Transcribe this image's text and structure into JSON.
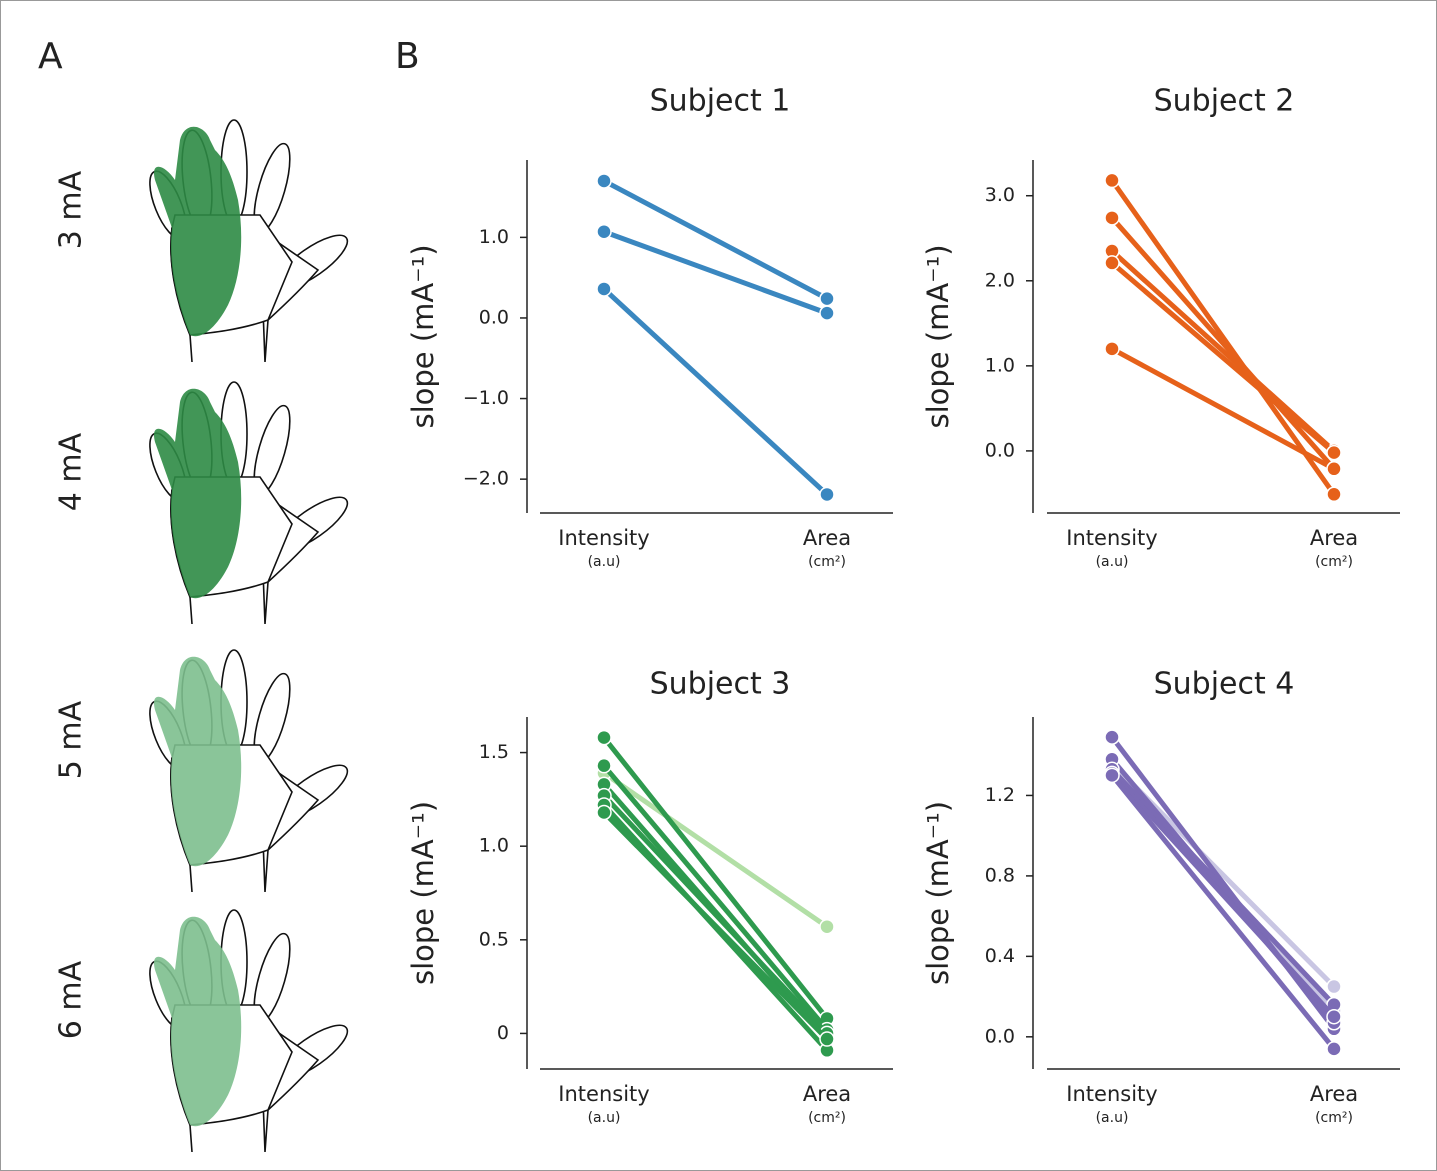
{
  "panel_a": {
    "label": "A",
    "rows": [
      "3 mA",
      "4 mA",
      "5 mA",
      "6 mA"
    ]
  },
  "panel_b": {
    "label": "B"
  },
  "chart_data": [
    {
      "type": "line",
      "title": "Subject 1",
      "y_label": "slope (mA⁻¹)",
      "categories": [
        "Intensity",
        "Area"
      ],
      "category_units": [
        "(a.u)",
        "(cm²)"
      ],
      "ylim": [
        -2.42,
        1.96
      ],
      "yticks": [
        {
          "value": 1,
          "label": "1.0"
        },
        {
          "value": 0,
          "label": "0.0"
        },
        {
          "value": -1,
          "label": "−1.0"
        },
        {
          "value": -2,
          "label": "−2.0"
        }
      ],
      "series": [
        {
          "color": "#3a87c0",
          "values": [
            1.7,
            0.24
          ]
        },
        {
          "color": "#3a87c0",
          "values": [
            1.07,
            0.06
          ]
        },
        {
          "color": "#3a87c0",
          "values": [
            0.36,
            -2.19
          ]
        }
      ]
    },
    {
      "type": "line",
      "title": "Subject 2",
      "y_label": "slope (mA⁻¹)",
      "categories": [
        "Intensity",
        "Area"
      ],
      "category_units": [
        "(a.u)",
        "(cm²)"
      ],
      "ylim": [
        -0.73,
        3.42
      ],
      "yticks": [
        {
          "value": 3,
          "label": "3.0"
        },
        {
          "value": 2,
          "label": "2.0"
        },
        {
          "value": 1,
          "label": "1.0"
        },
        {
          "value": 0,
          "label": "0.0"
        }
      ],
      "series": [
        {
          "color": "#e6611a",
          "values": [
            3.18,
            -0.51
          ]
        },
        {
          "color": "#e6611a",
          "values": [
            2.74,
            -0.21
          ]
        },
        {
          "color": "#e6611a",
          "values": [
            2.35,
            0.0
          ]
        },
        {
          "color": "#e6611a",
          "values": [
            2.21,
            -0.02
          ]
        },
        {
          "color": "#e6611a",
          "values": [
            1.2,
            -0.21
          ]
        }
      ]
    },
    {
      "type": "line",
      "title": "Subject 3",
      "y_label": "slope (mA⁻¹)",
      "categories": [
        "Intensity",
        "Area"
      ],
      "category_units": [
        "(a.u)",
        "(cm²)"
      ],
      "ylim": [
        -0.19,
        1.69
      ],
      "yticks": [
        1.5,
        {
          "value": 1,
          "label": "1.0"
        },
        0.5,
        0
      ],
      "series": [
        {
          "color": "#b2dfa6",
          "values": [
            1.39,
            0.57
          ]
        },
        {
          "color": "#2e9a4e",
          "values": [
            1.58,
            0.08
          ]
        },
        {
          "color": "#2e9a4e",
          "values": [
            1.43,
            0.02
          ]
        },
        {
          "color": "#2e9a4e",
          "values": [
            1.33,
            -0.03
          ]
        },
        {
          "color": "#2e9a4e",
          "values": [
            1.27,
            0.0
          ]
        },
        {
          "color": "#2e9a4e",
          "values": [
            1.22,
            -0.09
          ]
        },
        {
          "color": "#2e9a4e",
          "values": [
            1.18,
            -0.03
          ]
        }
      ]
    },
    {
      "type": "line",
      "title": "Subject 4",
      "y_label": "slope (mA⁻¹)",
      "categories": [
        "Intensity",
        "Area"
      ],
      "category_units": [
        "(a.u)",
        "(cm²)"
      ],
      "ylim": [
        -0.16,
        1.59
      ],
      "yticks": [
        1.2,
        0.8,
        0.4,
        {
          "value": 0,
          "label": "0.0"
        }
      ],
      "series": [
        {
          "color": "#c9c6e3",
          "values": [
            1.36,
            0.25
          ]
        },
        {
          "color": "#c9c6e3",
          "values": [
            1.34,
            0.13
          ]
        },
        {
          "color": "#7b6bb5",
          "values": [
            1.49,
            0.04
          ]
        },
        {
          "color": "#7b6bb5",
          "values": [
            1.38,
            0.07
          ]
        },
        {
          "color": "#7b6bb5",
          "values": [
            1.33,
            0.16
          ]
        },
        {
          "color": "#7b6bb5",
          "values": [
            1.31,
            0.1
          ]
        },
        {
          "color": "#7b6bb5",
          "values": [
            1.3,
            -0.06
          ]
        }
      ]
    }
  ]
}
